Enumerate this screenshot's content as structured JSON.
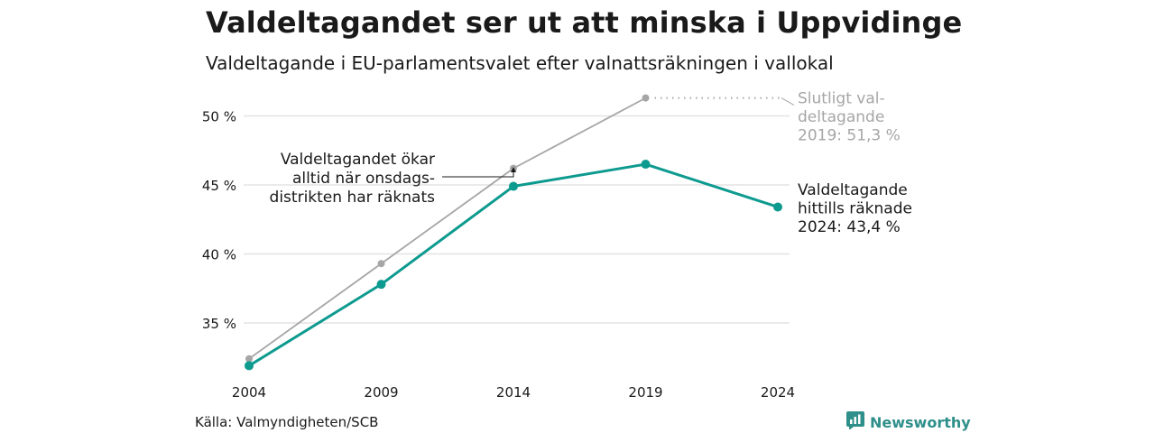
{
  "title": "Valdeltagandet ser ut att minska i Uppvidinge",
  "subtitle": "Valdeltagande i EU-parlamentsvalet efter valnattsräkningen i vallokal",
  "source": "Källa: Valmyndigheten/SCB",
  "brand": {
    "name": "Newsworthy",
    "icon": "newsworthy-logo-icon"
  },
  "colors": {
    "final": "#a6a6a6",
    "current": "#0d9a8f",
    "grid": "#e3e3e3",
    "text": "#1a1a1a"
  },
  "chart_data": {
    "type": "line",
    "x": [
      "2004",
      "2009",
      "2014",
      "2019",
      "2024"
    ],
    "xlabel": "",
    "ylabel": "",
    "ylim": [
      31,
      52
    ],
    "yticks": [
      35,
      40,
      45,
      50
    ],
    "ytick_labels": [
      "35 %",
      "40 %",
      "45 %",
      "50 %"
    ],
    "grid": true,
    "series": [
      {
        "key": "final",
        "values": [
          32.4,
          39.3,
          46.2,
          51.3,
          null
        ]
      },
      {
        "key": "current",
        "values": [
          31.9,
          37.8,
          44.9,
          46.5,
          43.4
        ]
      }
    ],
    "annotations": {
      "final_label": [
        "Slutligt val-",
        "deltagande",
        "2019: 51,3 %"
      ],
      "current_label": [
        "Valdeltagande",
        "hittills räknade",
        "2024: 43,4 %"
      ],
      "note": [
        "Valdeltagandet ökar",
        "alltid när onsdags-",
        "distrikten har räknats"
      ]
    }
  }
}
